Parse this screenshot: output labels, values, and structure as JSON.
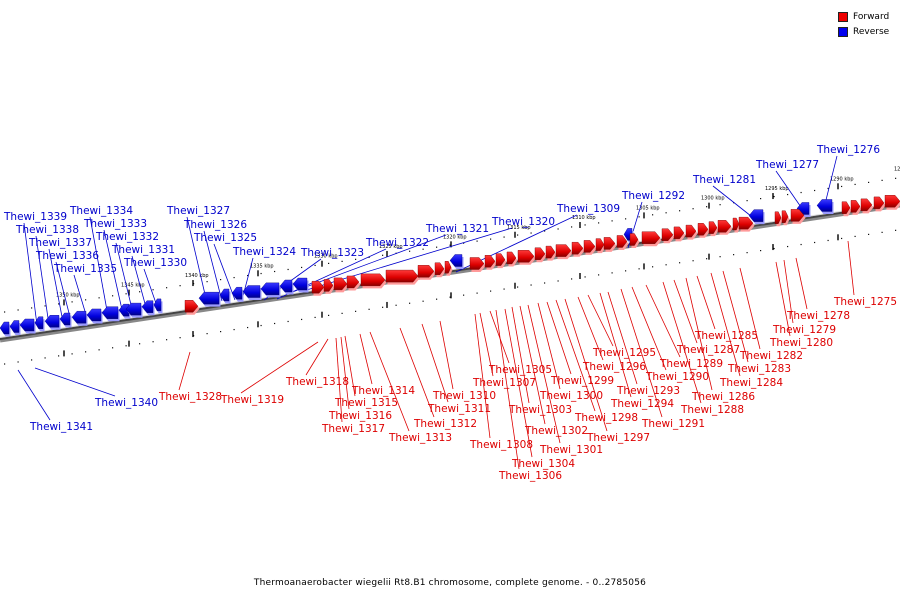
{
  "title": "Thermoanaerobacter wiegelii Rt8.B1 chromosome, complete genome. - 0..2785056",
  "legend": [
    {
      "label": "Forward",
      "color": "#ee0000"
    },
    {
      "label": "Reverse",
      "color": "#0000ee"
    }
  ],
  "scale_ticks": [
    "1350 kbp",
    "1345 kbp",
    "1340 kbp",
    "1335 kbp",
    "1330 kbp",
    "1325 kbp",
    "1320 kbp",
    "1315 kbp",
    "1310 kbp",
    "1305 kbp",
    "1300 kbp",
    "1295 kbp",
    "1290 kbp",
    "1285 kbp"
  ],
  "reverse_genes": [
    "Thewi_1339",
    "Thewi_1338",
    "Thewi_1337",
    "Thewi_1336",
    "Thewi_1335",
    "Thewi_1334",
    "Thewi_1333",
    "Thewi_1332",
    "Thewi_1331",
    "Thewi_1330",
    "Thewi_1327",
    "Thewi_1326",
    "Thewi_1325",
    "Thewi_1324",
    "Thewi_1323",
    "Thewi_1322",
    "Thewi_1321",
    "Thewi_1320",
    "Thewi_1309",
    "Thewi_1292",
    "Thewi_1281",
    "Thewi_1277",
    "Thewi_1276",
    "Thewi_1340",
    "Thewi_1341"
  ],
  "forward_genes": [
    "Thewi_1328",
    "Thewi_1319",
    "Thewi_1318",
    "Thewi_1315",
    "Thewi_1316",
    "Thewi_1317",
    "Thewi_1314",
    "Thewi_1313",
    "Thewi_1312",
    "Thewi_1311",
    "Thewi_1310",
    "Thewi_1308",
    "Thewi_1307",
    "Thewi_1305",
    "Thewi_1306",
    "Thewi_1304",
    "Thewi_1303",
    "Thewi_1302",
    "Thewi_1301",
    "Thewi_1300",
    "Thewi_1299",
    "Thewi_1298",
    "Thewi_1297",
    "Thewi_1296",
    "Thewi_1295",
    "Thewi_1294",
    "Thewi_1293",
    "Thewi_1291",
    "Thewi_1290",
    "Thewi_1289",
    "Thewi_1288",
    "Thewi_1287",
    "Thewi_1286",
    "Thewi_1285",
    "Thewi_1284",
    "Thewi_1283",
    "Thewi_1282",
    "Thewi_1280",
    "Thewi_1279",
    "Thewi_1278",
    "Thewi_1275"
  ]
}
